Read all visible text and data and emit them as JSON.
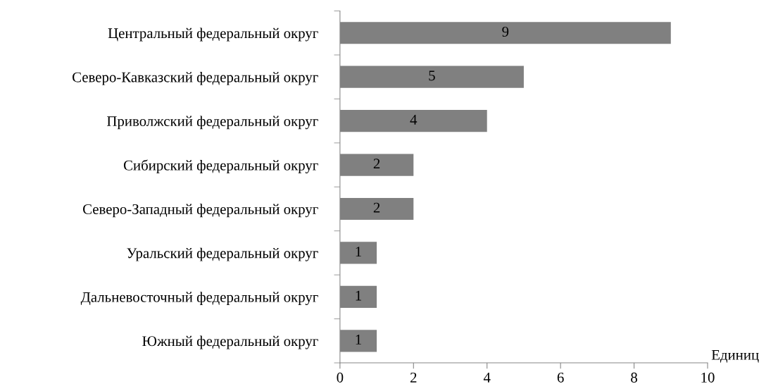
{
  "chart_data": {
    "type": "bar",
    "orientation": "horizontal",
    "categories": [
      "Центральный федеральный округ",
      "Северо-Кавказский федеральный округ",
      "Приволжский федеральный округ",
      "Сибирский федеральный округ",
      "Северо-Западный федеральный округ",
      "Уральский федеральный округ",
      "Дальневосточный федеральный округ",
      "Южный федеральный округ"
    ],
    "values": [
      9,
      5,
      4,
      2,
      2,
      1,
      1,
      1
    ],
    "color": "#808080",
    "xlim": [
      0,
      10
    ],
    "xticks": [
      0,
      2,
      4,
      6,
      8,
      10
    ],
    "xlabel": "Единиц",
    "data_labels": true,
    "grid": false
  }
}
